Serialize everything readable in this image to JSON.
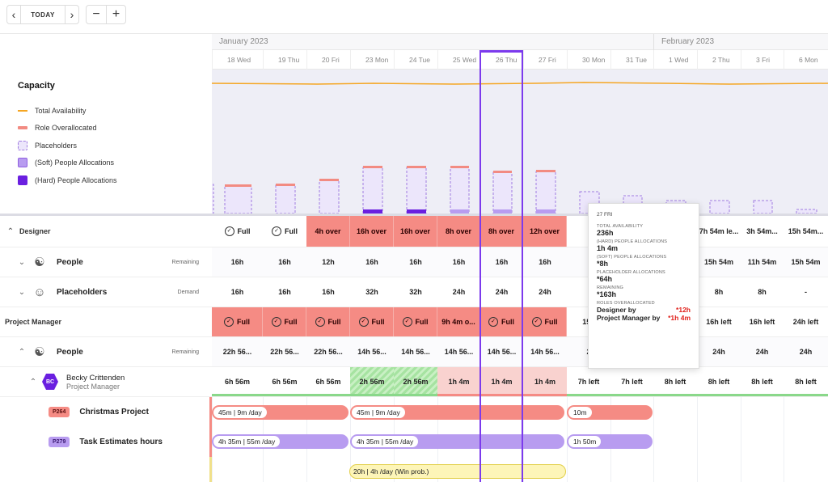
{
  "toolbar": {
    "prev_icon": "chevron-left-icon",
    "today_label": "TODAY",
    "next_icon": "chevron-right-icon",
    "zoom_out": "−",
    "zoom_in": "+"
  },
  "months": [
    "January 2023",
    "February 2023"
  ],
  "days": [
    "18 Wed",
    "19 Thu",
    "20 Fri",
    "23 Mon",
    "24 Tue",
    "25 Wed",
    "26 Thu",
    "27 Fri",
    "30 Mon",
    "31 Tue",
    "1 Wed",
    "2 Thu",
    "3 Fri",
    "6 Mon"
  ],
  "legend": {
    "title": "Capacity",
    "items": [
      "Total Availability",
      "Role Overallocated",
      "Placeholders",
      "(Soft) People Allocations",
      "(Hard) People Allocations"
    ],
    "colors": {
      "availability": "#f5a623",
      "overallocated": "#f28b82",
      "placeholder": "#ece6fb",
      "soft": "#b89cf0",
      "hard": "#6a1fe0"
    }
  },
  "rows": {
    "designer": {
      "label": "Designer",
      "cells": [
        "Full",
        "Full",
        "4h over",
        "16h over",
        "16h over",
        "8h over",
        "8h over",
        "12h over",
        "",
        "",
        "",
        "7h 54m le...",
        "3h 54m...",
        "15h 54m..."
      ]
    },
    "designer_people": {
      "label": "People",
      "tag": "Remaining",
      "cells": [
        "16h",
        "16h",
        "12h",
        "16h",
        "16h",
        "16h",
        "16h",
        "16h",
        "",
        "",
        "",
        "15h 54m",
        "11h 54m",
        "15h 54m"
      ]
    },
    "designer_placeholders": {
      "label": "Placeholders",
      "tag": "Demand",
      "cells": [
        "16h",
        "16h",
        "16h",
        "32h",
        "32h",
        "24h",
        "24h",
        "24h",
        "",
        "",
        "",
        "8h",
        "8h",
        "-"
      ]
    },
    "pm": {
      "label": "Project Manager",
      "cells": [
        "Full",
        "Full",
        "Full",
        "Full",
        "Full",
        "9h 4m o...",
        "Full",
        "Full",
        "15h",
        "",
        "",
        "16h left",
        "16h left",
        "24h left"
      ]
    },
    "pm_people": {
      "label": "People",
      "tag": "Remaining",
      "cells": [
        "22h 56...",
        "22h 56...",
        "22h 56...",
        "14h 56...",
        "14h 56...",
        "14h 56...",
        "14h 56...",
        "14h 56...",
        "2",
        "",
        "",
        "24h",
        "24h",
        "24h"
      ]
    },
    "person": {
      "initials": "BC",
      "name": "Becky Crittenden",
      "role": "Project Manager",
      "cells": [
        "6h 56m",
        "6h 56m",
        "6h 56m",
        "2h 56m",
        "2h 56m",
        "1h 4m",
        "1h 4m",
        "1h 4m",
        "7h left",
        "7h left",
        "8h left",
        "8h left",
        "8h left",
        "8h left"
      ]
    }
  },
  "tasks": [
    {
      "code": "P264",
      "name": "Christmas Project",
      "bars": [
        "45m | 9m /day",
        "45m | 9m /day",
        "10m"
      ]
    },
    {
      "code": "P279",
      "name": "Task Estimates hours",
      "bars": [
        "4h 35m | 55m /day",
        "4h 35m | 55m /day",
        "1h 50m"
      ]
    }
  ],
  "placeholder_bar": "20h | 4h /day (Win prob.)",
  "tooltip": {
    "date": "27 FRI",
    "total_label": "TOTAL AVAILABILITY",
    "total_value": "236h",
    "hard_label": "(HARD) PEOPLE ALLOCATIONS",
    "hard_value": "1h 4m",
    "soft_label": "(SOFT) PEOPLE ALLOCATIONS",
    "soft_value": "*8h",
    "ph_label": "PLACEHOLDER ALLOCATIONS",
    "ph_value": "*64h",
    "remaining_label": "REMAINING",
    "remaining_value": "*163h",
    "over_label": "ROLES OVERALLOCATED",
    "roles": [
      {
        "name": "Designer by",
        "value": "*12h"
      },
      {
        "name": "Project Manager by",
        "value": "*1h 4m"
      }
    ]
  }
}
